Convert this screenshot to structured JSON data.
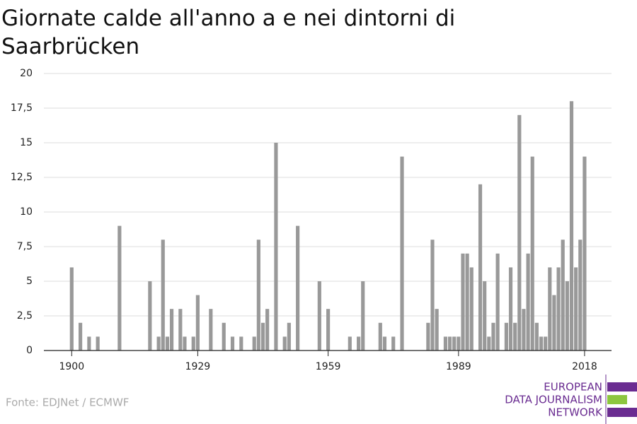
{
  "chart_data": {
    "type": "bar",
    "title": "Giornate calde all'anno a e nei dintorni di Saarbrücken",
    "x": [
      1900,
      1901,
      1902,
      1903,
      1904,
      1905,
      1906,
      1907,
      1908,
      1909,
      1910,
      1911,
      1912,
      1913,
      1914,
      1915,
      1916,
      1917,
      1918,
      1919,
      1920,
      1921,
      1922,
      1923,
      1924,
      1925,
      1926,
      1927,
      1928,
      1929,
      1930,
      1931,
      1932,
      1933,
      1934,
      1935,
      1936,
      1937,
      1938,
      1939,
      1940,
      1941,
      1942,
      1943,
      1944,
      1945,
      1946,
      1947,
      1948,
      1949,
      1950,
      1951,
      1952,
      1953,
      1954,
      1955,
      1956,
      1957,
      1958,
      1959,
      1960,
      1961,
      1962,
      1963,
      1964,
      1965,
      1966,
      1967,
      1968,
      1969,
      1970,
      1971,
      1972,
      1973,
      1974,
      1975,
      1976,
      1977,
      1978,
      1979,
      1980,
      1981,
      1982,
      1983,
      1984,
      1985,
      1986,
      1987,
      1988,
      1989,
      1990,
      1991,
      1992,
      1993,
      1994,
      1995,
      1996,
      1997,
      1998,
      1999,
      2000,
      2001,
      2002,
      2003,
      2004,
      2005,
      2006,
      2007,
      2008,
      2009,
      2010,
      2011,
      2012,
      2013,
      2014,
      2015,
      2016,
      2017,
      2018
    ],
    "values": [
      6,
      0,
      2,
      0,
      1,
      0,
      1,
      0,
      0,
      0,
      0,
      9,
      0,
      0,
      0,
      0,
      0,
      0,
      5,
      0,
      1,
      8,
      1,
      3,
      0,
      3,
      1,
      0,
      1,
      4,
      0,
      0,
      3,
      0,
      0,
      2,
      0,
      1,
      0,
      1,
      0,
      0,
      1,
      8,
      2,
      3,
      0,
      15,
      0,
      1,
      2,
      0,
      9,
      0,
      0,
      0,
      0,
      5,
      0,
      3,
      0,
      0,
      0,
      0,
      1,
      0,
      1,
      5,
      0,
      0,
      0,
      2,
      1,
      0,
      1,
      0,
      14,
      0,
      0,
      0,
      0,
      0,
      2,
      8,
      3,
      0,
      1,
      1,
      1,
      1,
      7,
      7,
      6,
      0,
      12,
      5,
      1,
      2,
      7,
      0,
      2,
      6,
      2,
      17,
      3,
      7,
      14,
      2,
      1,
      1,
      6,
      4,
      6,
      8,
      5,
      18,
      6,
      8,
      14
    ],
    "color": "#999999",
    "xlim": [
      1893.6,
      2024.2
    ],
    "xticks": [
      1900,
      1929,
      1959,
      1989,
      2018
    ],
    "ylim": [
      0,
      20
    ],
    "yticks": [
      0,
      {
        "value": 2.5,
        "label": "2,5"
      },
      5,
      {
        "value": 7.5,
        "label": "7,5"
      },
      10,
      {
        "value": 12.5,
        "label": "12,5"
      },
      15,
      {
        "value": 17.5,
        "label": "17,5"
      },
      20
    ],
    "grid": true
  },
  "source": "Fonte: EDJNet / ECMWF",
  "logo": [
    "EUROPEAN",
    "DATA JOURNALISM",
    "NETWORK"
  ]
}
